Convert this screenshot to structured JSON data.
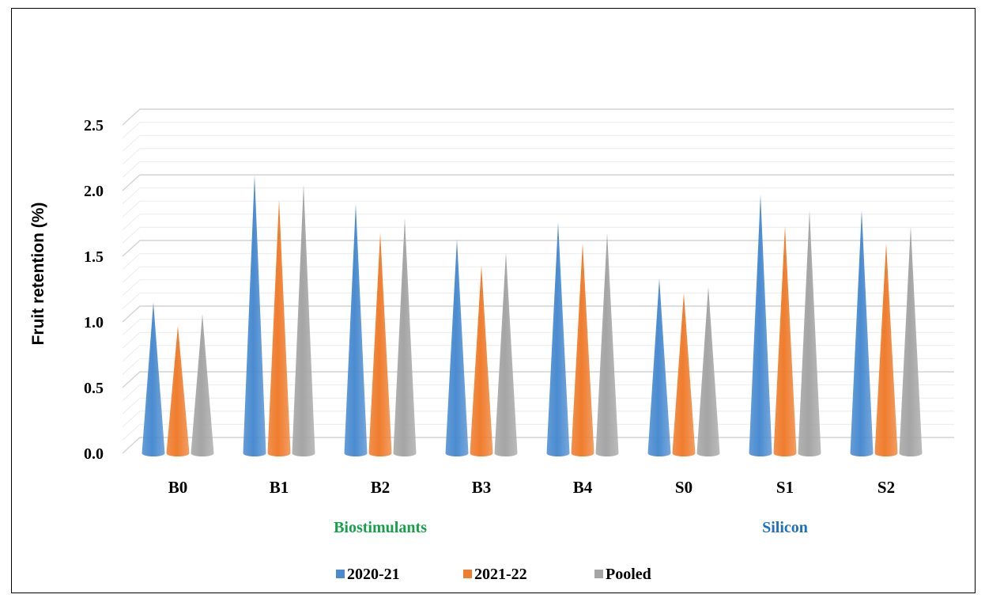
{
  "chart_data": {
    "type": "bar",
    "categories": [
      "B0",
      "B1",
      "B2",
      "B3",
      "B4",
      "S0",
      "S1",
      "S2"
    ],
    "series": [
      {
        "name": "2020-21",
        "color": "#4a8bd0",
        "values": [
          1.15,
          2.12,
          1.9,
          1.63,
          1.76,
          1.33,
          1.97,
          1.85
        ]
      },
      {
        "name": "2021-22",
        "color": "#ef7d2e",
        "values": [
          0.97,
          1.93,
          1.68,
          1.43,
          1.6,
          1.22,
          1.73,
          1.6
        ]
      },
      {
        "name": "Pooled",
        "color": "#a5a5a5",
        "values": [
          1.06,
          2.05,
          1.79,
          1.53,
          1.68,
          1.27,
          1.85,
          1.73
        ]
      }
    ],
    "ylabel": "Fruit retention (%)",
    "ylim": [
      0,
      2.5
    ],
    "yticks": [
      "0.0",
      "0.5",
      "1.0",
      "1.5",
      "2.0",
      "2.5"
    ],
    "groups": [
      {
        "label": "Biostimulants",
        "color": "#16a04a",
        "members": [
          "B0",
          "B1",
          "B2",
          "B3",
          "B4"
        ]
      },
      {
        "label": "Silicon",
        "color": "#1f6fbf",
        "members": [
          "S0",
          "S1",
          "S2"
        ]
      }
    ],
    "grid": true,
    "legend_position": "bottom"
  }
}
